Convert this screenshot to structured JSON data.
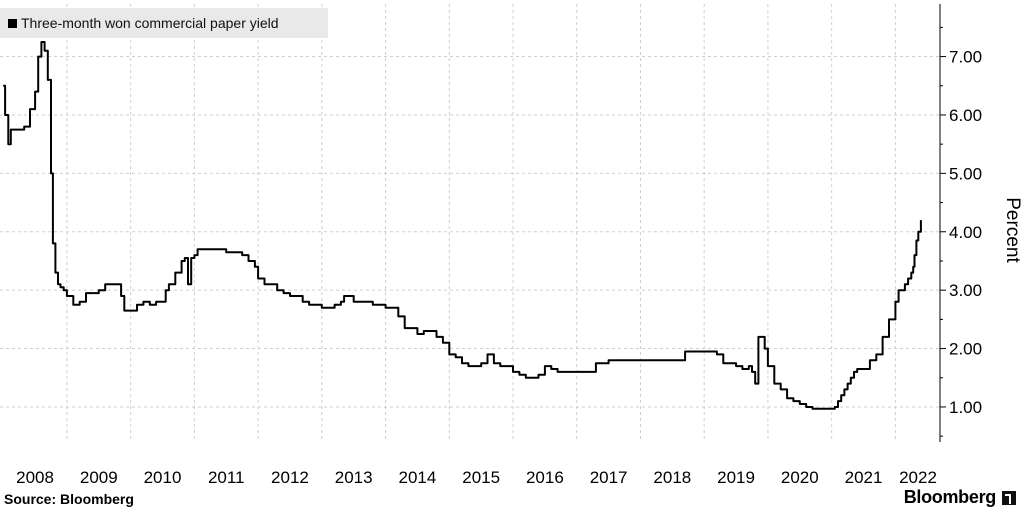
{
  "legend": {
    "label": "Three-month won commercial paper yield"
  },
  "source": "Source: Bloomberg",
  "brand": "Bloomberg",
  "brand_icon": "bloomberg-terminal-icon",
  "colors": {
    "line": "#000000",
    "grid": "#cfcfcf",
    "legend_bg": "#e9e9e9"
  },
  "chart_data": {
    "type": "line",
    "title": "",
    "xlabel": "",
    "ylabel": "Percent",
    "grid": true,
    "legend_position": "top-left",
    "ylim": [
      0.4,
      7.9
    ],
    "xlim": [
      2007.95,
      2022.7
    ],
    "x_ticks": [
      "2008",
      "2009",
      "2010",
      "2011",
      "2012",
      "2013",
      "2014",
      "2015",
      "2016",
      "2017",
      "2018",
      "2019",
      "2020",
      "2021",
      "2022"
    ],
    "y_ticks": [
      "1.00",
      "2.00",
      "3.00",
      "4.00",
      "5.00",
      "6.00",
      "7.00"
    ],
    "series": [
      {
        "name": "Three-month won commercial paper yield",
        "x": [
          2008.0,
          2008.03,
          2008.08,
          2008.12,
          2008.17,
          2008.25,
          2008.33,
          2008.42,
          2008.5,
          2008.55,
          2008.6,
          2008.65,
          2008.7,
          2008.75,
          2008.78,
          2008.82,
          2008.86,
          2008.9,
          2008.95,
          2009.0,
          2009.1,
          2009.2,
          2009.3,
          2009.4,
          2009.5,
          2009.6,
          2009.75,
          2009.85,
          2009.9,
          2010.0,
          2010.1,
          2010.2,
          2010.3,
          2010.4,
          2010.55,
          2010.6,
          2010.7,
          2010.8,
          2010.85,
          2010.9,
          2010.95,
          2011.0,
          2011.05,
          2011.1,
          2011.2,
          2011.3,
          2011.5,
          2011.7,
          2011.75,
          2011.85,
          2011.95,
          2012.0,
          2012.1,
          2012.3,
          2012.4,
          2012.5,
          2012.7,
          2012.8,
          2013.0,
          2013.2,
          2013.3,
          2013.35,
          2013.5,
          2013.8,
          2014.0,
          2014.2,
          2014.3,
          2014.5,
          2014.6,
          2014.8,
          2014.9,
          2015.0,
          2015.1,
          2015.2,
          2015.3,
          2015.45,
          2015.5,
          2015.6,
          2015.7,
          2015.8,
          2016.0,
          2016.1,
          2016.2,
          2016.3,
          2016.4,
          2016.5,
          2016.6,
          2016.7,
          2016.9,
          2017.0,
          2017.2,
          2017.3,
          2017.5,
          2017.8,
          2018.0,
          2018.3,
          2018.5,
          2018.7,
          2018.9,
          2019.0,
          2019.2,
          2019.3,
          2019.5,
          2019.6,
          2019.7,
          2019.75,
          2019.8,
          2019.85,
          2019.95,
          2020.0,
          2020.1,
          2020.2,
          2020.3,
          2020.4,
          2020.5,
          2020.6,
          2020.7,
          2020.8,
          2020.9,
          2021.0,
          2021.05,
          2021.1,
          2021.15,
          2021.2,
          2021.25,
          2021.3,
          2021.35,
          2021.4,
          2021.5,
          2021.6,
          2021.7,
          2021.8,
          2021.9,
          2022.0,
          2022.05,
          2022.1,
          2022.15,
          2022.2,
          2022.25,
          2022.28,
          2022.3,
          2022.33,
          2022.36,
          2022.4
        ],
        "y": [
          6.5,
          6.0,
          5.5,
          5.75,
          5.75,
          5.75,
          5.8,
          6.1,
          6.4,
          7.0,
          7.25,
          7.1,
          6.6,
          5.0,
          3.8,
          3.3,
          3.1,
          3.05,
          3.0,
          2.9,
          2.75,
          2.8,
          2.95,
          2.95,
          3.0,
          3.1,
          3.1,
          2.9,
          2.65,
          2.65,
          2.75,
          2.8,
          2.75,
          2.8,
          3.0,
          3.1,
          3.3,
          3.5,
          3.55,
          3.1,
          3.55,
          3.6,
          3.7,
          3.7,
          3.7,
          3.7,
          3.65,
          3.65,
          3.6,
          3.5,
          3.4,
          3.2,
          3.1,
          3.0,
          2.95,
          2.9,
          2.8,
          2.75,
          2.7,
          2.75,
          2.8,
          2.9,
          2.8,
          2.75,
          2.7,
          2.55,
          2.35,
          2.25,
          2.3,
          2.2,
          2.1,
          1.9,
          1.85,
          1.75,
          1.7,
          1.7,
          1.75,
          1.9,
          1.75,
          1.7,
          1.6,
          1.55,
          1.5,
          1.5,
          1.55,
          1.7,
          1.65,
          1.6,
          1.6,
          1.6,
          1.6,
          1.75,
          1.8,
          1.8,
          1.8,
          1.8,
          1.8,
          1.95,
          1.95,
          1.95,
          1.9,
          1.75,
          1.7,
          1.65,
          1.7,
          1.6,
          1.4,
          2.2,
          2.0,
          1.7,
          1.4,
          1.3,
          1.15,
          1.1,
          1.05,
          1.0,
          0.97,
          0.97,
          0.97,
          0.97,
          1.0,
          1.1,
          1.2,
          1.3,
          1.4,
          1.5,
          1.6,
          1.65,
          1.65,
          1.8,
          1.9,
          2.2,
          2.5,
          2.8,
          3.0,
          3.0,
          3.1,
          3.2,
          3.3,
          3.4,
          3.6,
          3.85,
          4.0,
          4.2
        ]
      }
    ]
  }
}
